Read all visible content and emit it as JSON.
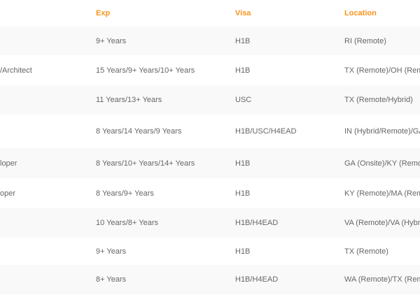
{
  "table": {
    "headers": [
      "",
      "Exp",
      "Visa",
      "Location"
    ],
    "accent_color": "#f7941d",
    "rows": [
      {
        "role": "",
        "exp": "9+ Years",
        "visa": "H1B",
        "location": " RI (Remote)"
      },
      {
        "role": "/Architect",
        "exp": "15 Years/9+ Years/10+ Years",
        "visa": "H1B",
        "location": "TX (Remote)/OH (Rem"
      },
      {
        "role": "",
        "exp": "11 Years/13+ Years",
        "visa": "USC",
        "location": "TX (Remote/Hybrid)"
      },
      {
        "role": "",
        "exp": "8 Years/14 Years/9 Years",
        "visa": "H1B/USC/H4EAD",
        "location": "IN (Hybrid/Remote)/GA"
      },
      {
        "role": "loper",
        "exp": "8 Years/10+ Years/14+ Years",
        "visa": "H1B",
        "location": "GA (Onsite)/KY (Remo"
      },
      {
        "role": "oper",
        "exp": "8 Years/9+ Years",
        "visa": "H1B",
        "location": "KY (Remote)/MA (Rem"
      },
      {
        "role": "",
        "exp": "10 Years/8+ Years",
        "visa": "H1B/H4EAD",
        "location": "VA (Remote)/VA (Hybr"
      },
      {
        "role": "",
        "exp": "9+ Years",
        "visa": "H1B",
        "location": "TX (Remote)"
      },
      {
        "role": "",
        "exp": "8+ Years",
        "visa": "H1B/H4EAD",
        "location": "WA (Remote)/TX (Rem"
      }
    ]
  }
}
